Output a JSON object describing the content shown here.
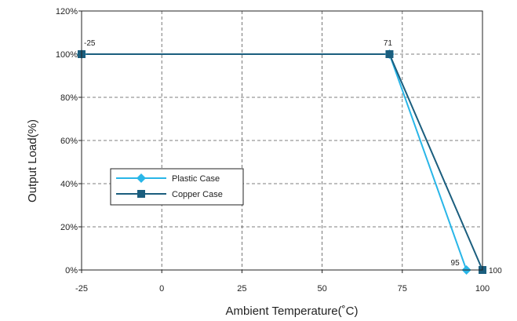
{
  "chart_data": {
    "type": "line",
    "xlabel": "Ambient Temperature(˚C)",
    "ylabel": "Output Load(%)",
    "xlim": [
      -25,
      100
    ],
    "ylim": [
      0,
      120
    ],
    "x_ticks": [
      {
        "value": -25,
        "label": "-25"
      },
      {
        "value": 0,
        "label": "0"
      },
      {
        "value": 25,
        "label": "25"
      },
      {
        "value": 50,
        "label": "50"
      },
      {
        "value": 75,
        "label": "75"
      },
      {
        "value": 100,
        "label": "100"
      }
    ],
    "y_ticks": [
      {
        "value": 0,
        "label": "0%"
      },
      {
        "value": 20,
        "label": "20%"
      },
      {
        "value": 40,
        "label": "40%"
      },
      {
        "value": 60,
        "label": "60%"
      },
      {
        "value": 80,
        "label": "80%"
      },
      {
        "value": 100,
        "label": "100%"
      },
      {
        "value": 120,
        "label": "120%"
      }
    ],
    "grid": true,
    "legend_position": "center-left",
    "series": [
      {
        "name": "Plastic Case",
        "color": "#29b6e8",
        "marker": "diamond",
        "points": [
          {
            "x": -25,
            "y": 100
          },
          {
            "x": 71,
            "y": 100
          },
          {
            "x": 95,
            "y": 0
          }
        ]
      },
      {
        "name": "Copper Case",
        "color": "#1b5e7e",
        "marker": "square",
        "points": [
          {
            "x": -25,
            "y": 100
          },
          {
            "x": 71,
            "y": 100
          },
          {
            "x": 100,
            "y": 0
          }
        ]
      }
    ],
    "annotations": [
      {
        "text": "-25",
        "x": -25,
        "y": 100
      },
      {
        "text": "71",
        "x": 71,
        "y": 100
      },
      {
        "text": "95",
        "x": 95,
        "y": 0
      },
      {
        "text": "100",
        "x": 100,
        "y": 0
      }
    ]
  }
}
